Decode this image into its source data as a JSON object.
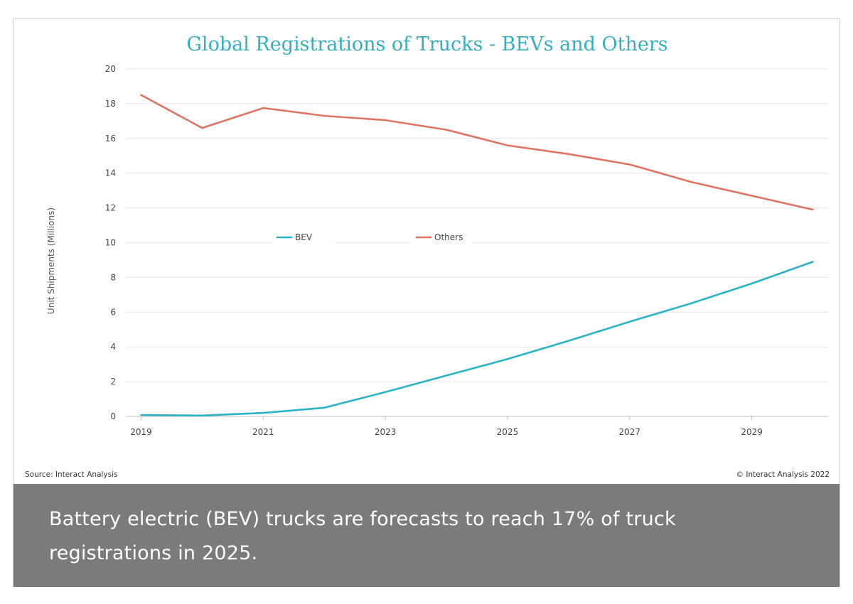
{
  "chart_data": {
    "type": "line",
    "title": "Global Registrations of Trucks - BEVs and Others",
    "ylabel": "Unit Shipments (Millions)",
    "xlabel": "",
    "ylim": [
      0,
      20
    ],
    "yticks": [
      0,
      2,
      4,
      6,
      8,
      10,
      12,
      14,
      16,
      18,
      20
    ],
    "xlim": [
      2019,
      2030
    ],
    "xticks": [
      2019,
      2021,
      2023,
      2025,
      2027,
      2029
    ],
    "grid": true,
    "legend_position": "center",
    "x": [
      2019,
      2020,
      2021,
      2022,
      2023,
      2024,
      2025,
      2026,
      2027,
      2028,
      2029,
      2030
    ],
    "series": [
      {
        "name": "BEV",
        "color": "#2ab3c4",
        "values": [
          0.08,
          0.05,
          0.2,
          0.5,
          1.4,
          2.35,
          3.3,
          4.35,
          5.45,
          6.5,
          7.65,
          8.9
        ]
      },
      {
        "name": "Others",
        "color": "#e07462",
        "values": [
          18.5,
          16.6,
          17.75,
          17.3,
          17.05,
          16.5,
          15.6,
          15.1,
          14.5,
          13.5,
          12.7,
          11.9
        ]
      }
    ]
  },
  "source": "Source: Interact Analysis",
  "copyright": "© Interact Analysis 2022",
  "caption": "Battery electric (BEV) trucks are forecasts to reach 17% of truck registrations in 2025."
}
